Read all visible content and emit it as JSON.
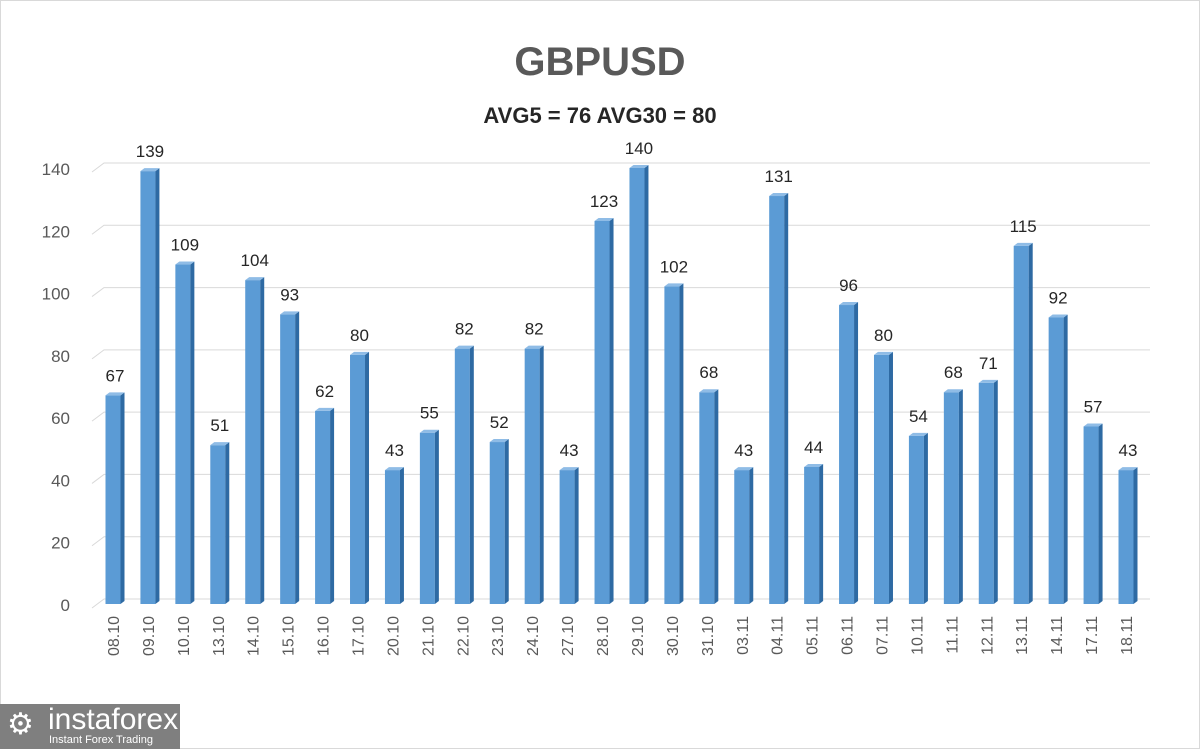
{
  "chart_data": {
    "type": "bar",
    "title": "GBPUSD",
    "subtitle": "AVG5 = 76 AVG30 = 80",
    "categories": [
      "08.10",
      "09.10",
      "10.10",
      "13.10",
      "14.10",
      "15.10",
      "16.10",
      "17.10",
      "20.10",
      "21.10",
      "22.10",
      "23.10",
      "24.10",
      "27.10",
      "28.10",
      "29.10",
      "30.10",
      "31.10",
      "03.11",
      "04.11",
      "05.11",
      "06.11",
      "07.11",
      "10.11",
      "11.11",
      "12.11",
      "13.11",
      "14.11",
      "17.11",
      "18.11"
    ],
    "values": [
      67,
      139,
      109,
      51,
      104,
      93,
      62,
      80,
      43,
      55,
      82,
      52,
      82,
      43,
      123,
      140,
      102,
      68,
      43,
      131,
      44,
      96,
      80,
      54,
      68,
      71,
      115,
      92,
      57,
      43
    ],
    "yticks": [
      0,
      20,
      40,
      60,
      80,
      100,
      120,
      140
    ],
    "ylim": [
      0,
      140
    ],
    "grid": true,
    "xlabel": "",
    "ylabel": "",
    "colors": {
      "bar": "#5b9bd5",
      "bar_side": "#2e6aa3",
      "grid": "#d9d9d9",
      "tick_label": "#595959"
    }
  },
  "watermark": {
    "name": "instaforex",
    "tagline": "Instant Forex Trading"
  }
}
